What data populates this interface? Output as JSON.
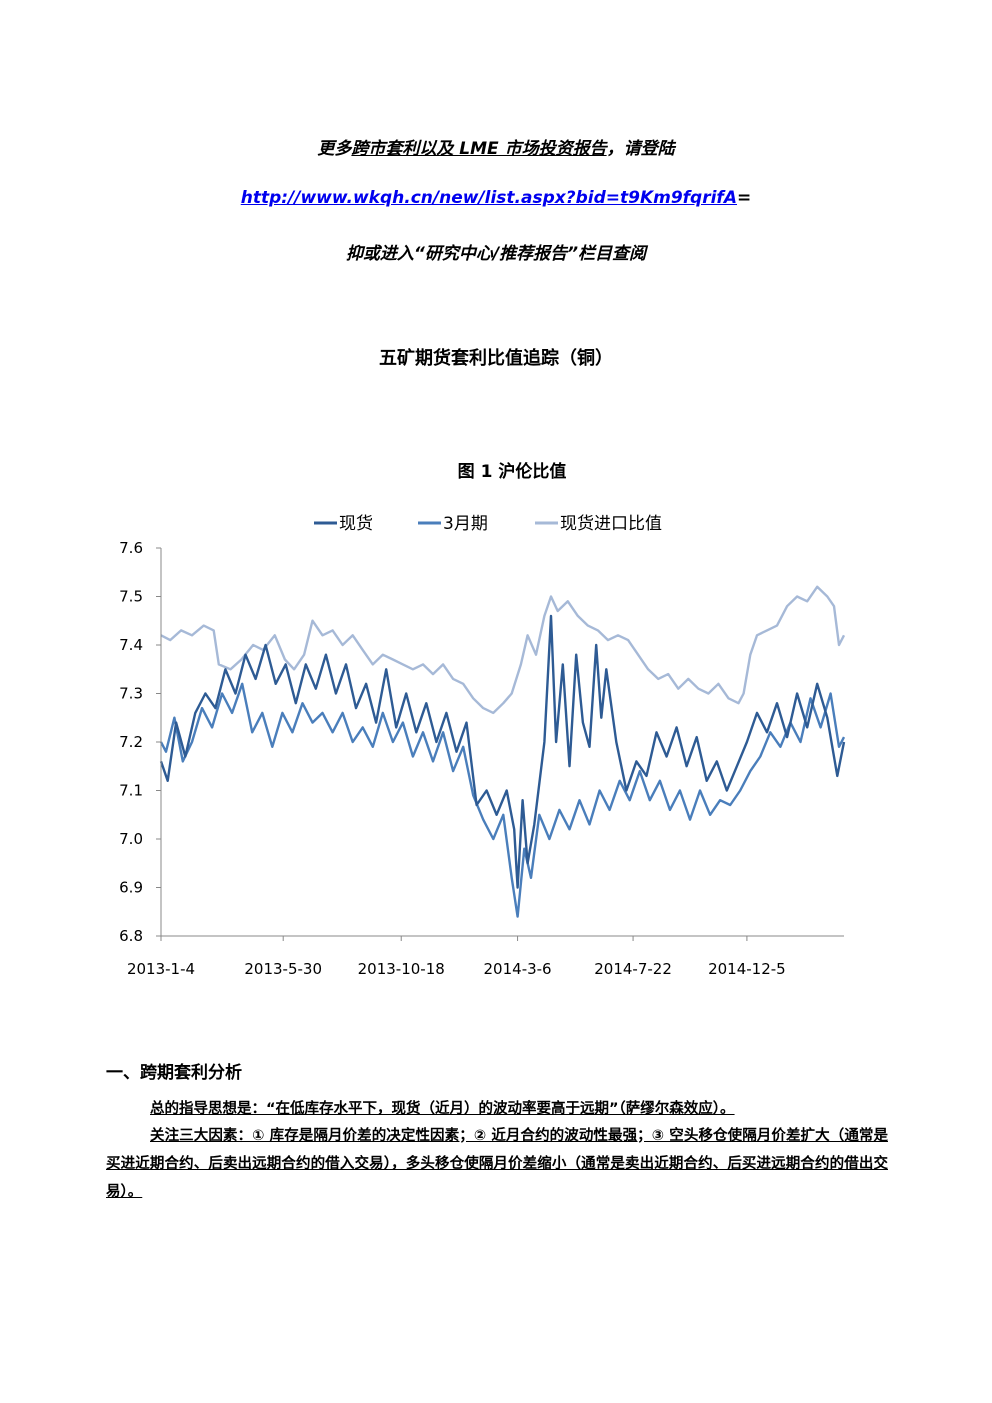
{
  "promo": {
    "line1_prefix": "更多",
    "line1_link": "跨市套利以及 LME 市场投资报告",
    "line1_suffix": "，请登陆",
    "url": "http://www.wkqh.cn/new/list.aspx?bid=t9Km9fqrifA",
    "url_suffix": "=",
    "line3": "抑或进入“研究中心/推荐报告”栏目查阅"
  },
  "doc_title": "五矿期货套利比值追踪（铜）",
  "chart_data": {
    "type": "line",
    "title": "图 1    沪伦比值",
    "legend_position": "top",
    "ylim": [
      6.8,
      7.6
    ],
    "y_ticks": [
      "7.6",
      "7.5",
      "7.4",
      "7.3",
      "7.2",
      "7.1",
      "7.0",
      "6.9",
      "6.8"
    ],
    "x_ticks": [
      "2013-1-4",
      "2013-5-30",
      "2013-10-18",
      "2014-3-6",
      "2014-7-22",
      "2014-12-5"
    ],
    "x_range": [
      "2013-01-04",
      "2015-03-31"
    ],
    "grid": false,
    "series": [
      {
        "name": "现货",
        "color": "#2e5b94",
        "points": [
          [
            "2013-01-04",
            7.16
          ],
          [
            "2013-01-12",
            7.12
          ],
          [
            "2013-01-22",
            7.24
          ],
          [
            "2013-02-02",
            7.17
          ],
          [
            "2013-02-14",
            7.26
          ],
          [
            "2013-02-26",
            7.3
          ],
          [
            "2013-03-10",
            7.27
          ],
          [
            "2013-03-22",
            7.35
          ],
          [
            "2013-04-03",
            7.3
          ],
          [
            "2013-04-15",
            7.38
          ],
          [
            "2013-04-27",
            7.33
          ],
          [
            "2013-05-09",
            7.4
          ],
          [
            "2013-05-21",
            7.32
          ],
          [
            "2013-06-02",
            7.36
          ],
          [
            "2013-06-14",
            7.28
          ],
          [
            "2013-06-26",
            7.36
          ],
          [
            "2013-07-08",
            7.31
          ],
          [
            "2013-07-20",
            7.38
          ],
          [
            "2013-08-01",
            7.3
          ],
          [
            "2013-08-13",
            7.36
          ],
          [
            "2013-08-25",
            7.27
          ],
          [
            "2013-09-06",
            7.32
          ],
          [
            "2013-09-18",
            7.24
          ],
          [
            "2013-09-30",
            7.35
          ],
          [
            "2013-10-12",
            7.23
          ],
          [
            "2013-10-24",
            7.3
          ],
          [
            "2013-11-05",
            7.22
          ],
          [
            "2013-11-17",
            7.28
          ],
          [
            "2013-11-29",
            7.2
          ],
          [
            "2013-12-11",
            7.26
          ],
          [
            "2013-12-23",
            7.18
          ],
          [
            "2014-01-04",
            7.24
          ],
          [
            "2014-01-16",
            7.07
          ],
          [
            "2014-01-28",
            7.1
          ],
          [
            "2014-02-09",
            7.05
          ],
          [
            "2014-02-21",
            7.1
          ],
          [
            "2014-03-02",
            7.02
          ],
          [
            "2014-03-06",
            6.9
          ],
          [
            "2014-03-12",
            7.08
          ],
          [
            "2014-03-18",
            6.95
          ],
          [
            "2014-03-26",
            7.03
          ],
          [
            "2014-04-07",
            7.2
          ],
          [
            "2014-04-15",
            7.46
          ],
          [
            "2014-04-21",
            7.2
          ],
          [
            "2014-04-29",
            7.36
          ],
          [
            "2014-05-07",
            7.15
          ],
          [
            "2014-05-15",
            7.38
          ],
          [
            "2014-05-23",
            7.24
          ],
          [
            "2014-05-31",
            7.19
          ],
          [
            "2014-06-08",
            7.4
          ],
          [
            "2014-06-14",
            7.25
          ],
          [
            "2014-06-20",
            7.35
          ],
          [
            "2014-07-02",
            7.2
          ],
          [
            "2014-07-14",
            7.1
          ],
          [
            "2014-07-26",
            7.16
          ],
          [
            "2014-08-07",
            7.13
          ],
          [
            "2014-08-19",
            7.22
          ],
          [
            "2014-08-31",
            7.17
          ],
          [
            "2014-09-12",
            7.23
          ],
          [
            "2014-09-24",
            7.15
          ],
          [
            "2014-10-06",
            7.21
          ],
          [
            "2014-10-18",
            7.12
          ],
          [
            "2014-10-30",
            7.16
          ],
          [
            "2014-11-11",
            7.1
          ],
          [
            "2014-11-23",
            7.15
          ],
          [
            "2014-12-05",
            7.2
          ],
          [
            "2014-12-17",
            7.26
          ],
          [
            "2014-12-29",
            7.22
          ],
          [
            "2015-01-10",
            7.28
          ],
          [
            "2015-01-22",
            7.21
          ],
          [
            "2015-02-03",
            7.3
          ],
          [
            "2015-02-15",
            7.23
          ],
          [
            "2015-02-27",
            7.32
          ],
          [
            "2015-03-11",
            7.25
          ],
          [
            "2015-03-23",
            7.13
          ],
          [
            "2015-03-31",
            7.2
          ]
        ]
      },
      {
        "name": "3月期",
        "color": "#4a7ebb",
        "points": [
          [
            "2013-01-04",
            7.2
          ],
          [
            "2013-01-10",
            7.18
          ],
          [
            "2013-01-20",
            7.25
          ],
          [
            "2013-01-30",
            7.16
          ],
          [
            "2013-02-10",
            7.2
          ],
          [
            "2013-02-22",
            7.27
          ],
          [
            "2013-03-06",
            7.23
          ],
          [
            "2013-03-18",
            7.3
          ],
          [
            "2013-03-30",
            7.26
          ],
          [
            "2013-04-11",
            7.32
          ],
          [
            "2013-04-23",
            7.22
          ],
          [
            "2013-05-05",
            7.26
          ],
          [
            "2013-05-17",
            7.19
          ],
          [
            "2013-05-29",
            7.26
          ],
          [
            "2013-06-10",
            7.22
          ],
          [
            "2013-06-22",
            7.28
          ],
          [
            "2013-07-04",
            7.24
          ],
          [
            "2013-07-16",
            7.26
          ],
          [
            "2013-07-28",
            7.22
          ],
          [
            "2013-08-09",
            7.26
          ],
          [
            "2013-08-21",
            7.2
          ],
          [
            "2013-09-02",
            7.23
          ],
          [
            "2013-09-14",
            7.19
          ],
          [
            "2013-09-26",
            7.26
          ],
          [
            "2013-10-08",
            7.2
          ],
          [
            "2013-10-20",
            7.24
          ],
          [
            "2013-11-01",
            7.17
          ],
          [
            "2013-11-13",
            7.22
          ],
          [
            "2013-11-25",
            7.16
          ],
          [
            "2013-12-07",
            7.22
          ],
          [
            "2013-12-19",
            7.14
          ],
          [
            "2013-12-31",
            7.19
          ],
          [
            "2014-01-12",
            7.09
          ],
          [
            "2014-01-24",
            7.04
          ],
          [
            "2014-02-05",
            7.0
          ],
          [
            "2014-02-17",
            7.05
          ],
          [
            "2014-02-27",
            6.92
          ],
          [
            "2014-03-06",
            6.84
          ],
          [
            "2014-03-14",
            6.98
          ],
          [
            "2014-03-22",
            6.92
          ],
          [
            "2014-04-01",
            7.05
          ],
          [
            "2014-04-13",
            7.0
          ],
          [
            "2014-04-25",
            7.06
          ],
          [
            "2014-05-07",
            7.02
          ],
          [
            "2014-05-19",
            7.08
          ],
          [
            "2014-05-31",
            7.03
          ],
          [
            "2014-06-12",
            7.1
          ],
          [
            "2014-06-24",
            7.06
          ],
          [
            "2014-07-06",
            7.12
          ],
          [
            "2014-07-18",
            7.08
          ],
          [
            "2014-07-30",
            7.14
          ],
          [
            "2014-08-11",
            7.08
          ],
          [
            "2014-08-23",
            7.12
          ],
          [
            "2014-09-04",
            7.06
          ],
          [
            "2014-09-16",
            7.1
          ],
          [
            "2014-09-28",
            7.04
          ],
          [
            "2014-10-10",
            7.1
          ],
          [
            "2014-10-22",
            7.05
          ],
          [
            "2014-11-03",
            7.08
          ],
          [
            "2014-11-15",
            7.07
          ],
          [
            "2014-11-27",
            7.1
          ],
          [
            "2014-12-09",
            7.14
          ],
          [
            "2014-12-21",
            7.17
          ],
          [
            "2015-01-02",
            7.22
          ],
          [
            "2015-01-14",
            7.19
          ],
          [
            "2015-01-26",
            7.24
          ],
          [
            "2015-02-07",
            7.2
          ],
          [
            "2015-02-19",
            7.29
          ],
          [
            "2015-03-03",
            7.23
          ],
          [
            "2015-03-15",
            7.3
          ],
          [
            "2015-03-25",
            7.19
          ],
          [
            "2015-03-31",
            7.21
          ]
        ]
      },
      {
        "name": "现货进口比值",
        "color": "#a6b9d7",
        "points": [
          [
            "2013-01-04",
            7.42
          ],
          [
            "2013-01-15",
            7.41
          ],
          [
            "2013-01-28",
            7.43
          ],
          [
            "2013-02-10",
            7.42
          ],
          [
            "2013-02-24",
            7.44
          ],
          [
            "2013-03-08",
            7.43
          ],
          [
            "2013-03-14",
            7.36
          ],
          [
            "2013-03-28",
            7.35
          ],
          [
            "2013-04-10",
            7.37
          ],
          [
            "2013-04-24",
            7.4
          ],
          [
            "2013-05-06",
            7.39
          ],
          [
            "2013-05-20",
            7.42
          ],
          [
            "2013-06-01",
            7.37
          ],
          [
            "2013-06-12",
            7.35
          ],
          [
            "2013-06-24",
            7.38
          ],
          [
            "2013-07-04",
            7.45
          ],
          [
            "2013-07-16",
            7.42
          ],
          [
            "2013-07-28",
            7.43
          ],
          [
            "2013-08-09",
            7.4
          ],
          [
            "2013-08-21",
            7.42
          ],
          [
            "2013-09-02",
            7.39
          ],
          [
            "2013-09-14",
            7.36
          ],
          [
            "2013-09-26",
            7.38
          ],
          [
            "2013-10-08",
            7.37
          ],
          [
            "2013-10-20",
            7.36
          ],
          [
            "2013-11-01",
            7.35
          ],
          [
            "2013-11-13",
            7.36
          ],
          [
            "2013-11-25",
            7.34
          ],
          [
            "2013-12-07",
            7.36
          ],
          [
            "2013-12-19",
            7.33
          ],
          [
            "2013-12-31",
            7.32
          ],
          [
            "2014-01-12",
            7.29
          ],
          [
            "2014-01-24",
            7.27
          ],
          [
            "2014-02-05",
            7.26
          ],
          [
            "2014-02-17",
            7.28
          ],
          [
            "2014-02-27",
            7.3
          ],
          [
            "2014-03-10",
            7.36
          ],
          [
            "2014-03-18",
            7.42
          ],
          [
            "2014-03-28",
            7.38
          ],
          [
            "2014-04-07",
            7.46
          ],
          [
            "2014-04-15",
            7.5
          ],
          [
            "2014-04-23",
            7.47
          ],
          [
            "2014-05-05",
            7.49
          ],
          [
            "2014-05-17",
            7.46
          ],
          [
            "2014-05-29",
            7.44
          ],
          [
            "2014-06-10",
            7.43
          ],
          [
            "2014-06-22",
            7.41
          ],
          [
            "2014-07-04",
            7.42
          ],
          [
            "2014-07-16",
            7.41
          ],
          [
            "2014-07-28",
            7.38
          ],
          [
            "2014-08-09",
            7.35
          ],
          [
            "2014-08-21",
            7.33
          ],
          [
            "2014-09-02",
            7.34
          ],
          [
            "2014-09-14",
            7.31
          ],
          [
            "2014-09-26",
            7.33
          ],
          [
            "2014-10-08",
            7.31
          ],
          [
            "2014-10-20",
            7.3
          ],
          [
            "2014-11-01",
            7.32
          ],
          [
            "2014-11-13",
            7.29
          ],
          [
            "2014-11-25",
            7.28
          ],
          [
            "2014-12-01",
            7.3
          ],
          [
            "2014-12-09",
            7.38
          ],
          [
            "2014-12-17",
            7.42
          ],
          [
            "2014-12-29",
            7.43
          ],
          [
            "2015-01-10",
            7.44
          ],
          [
            "2015-01-22",
            7.48
          ],
          [
            "2015-02-03",
            7.5
          ],
          [
            "2015-02-15",
            7.49
          ],
          [
            "2015-02-27",
            7.52
          ],
          [
            "2015-03-11",
            7.5
          ],
          [
            "2015-03-19",
            7.48
          ],
          [
            "2015-03-25",
            7.4
          ],
          [
            "2015-03-31",
            7.42
          ]
        ]
      }
    ]
  },
  "section": {
    "heading": "一、跨期套利分析",
    "para1": "总的指导思想是：“在低库存水平下，现货（近月）的波动率要高于远期”（萨缪尔森效应）。",
    "para2": "关注三大因素：① 库存是隔月价差的决定性因素；② 近月合约的波动性最强；③ 空头移仓使隔月价差扩大（通常是买进近期合约、后卖出远期合约的借入交易），多头移仓使隔月价差缩小（通常是卖出近期合约、后买进远期合约的借出交易）。"
  }
}
